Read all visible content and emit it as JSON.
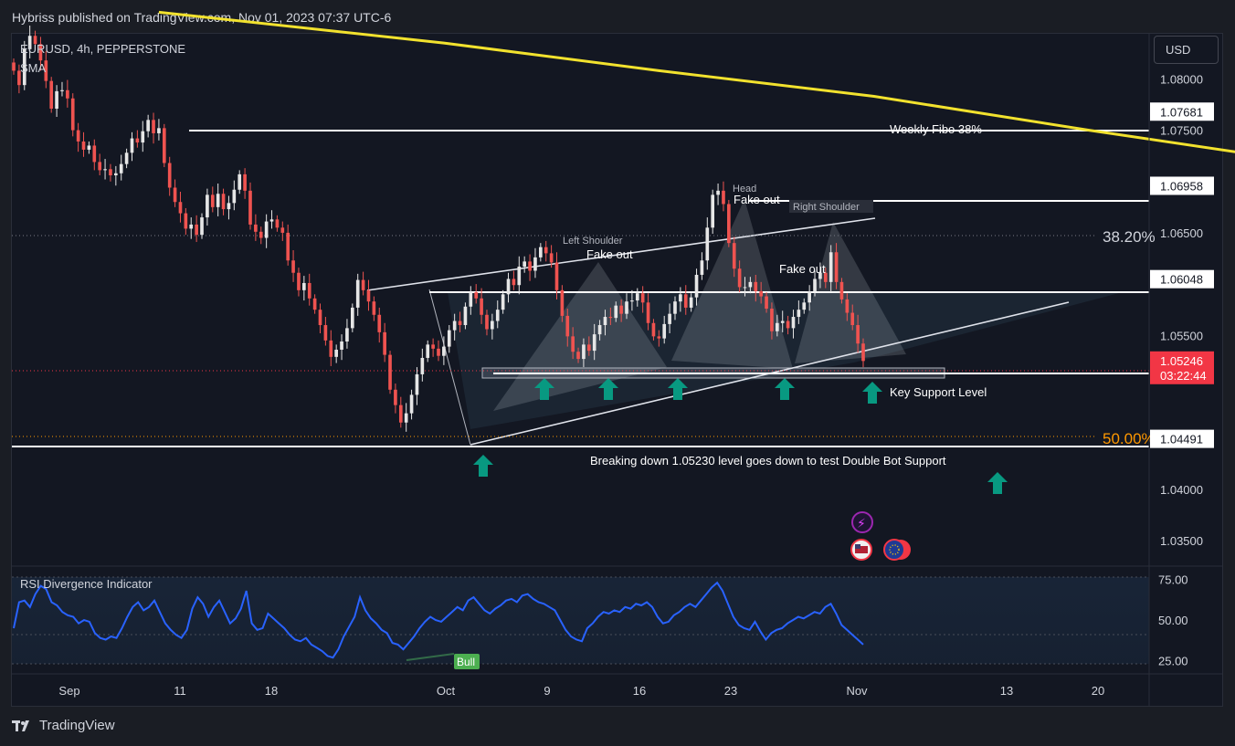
{
  "header": {
    "publisher_line": "Hybriss published on TradingView.com, Nov 01, 2023 07:37 UTC-6"
  },
  "legend": {
    "symbol": "EURUSD, 4h, PEPPERSTONE",
    "indicator": "SMA",
    "rsi_title": "RSI Divergence Indicator"
  },
  "currency_button": "USD",
  "footer": {
    "brand": "TradingView"
  },
  "colors": {
    "up": "#e6e6e6",
    "down": "#ef5350",
    "sma": "#f2e22e",
    "rsi": "#2962ff",
    "arrow": "#089981",
    "fib": "#ff9800",
    "price_label": "#f23645"
  },
  "chart_data": {
    "type": "candlestick",
    "price_axis": {
      "range": [
        1.0325,
        1.0844
      ],
      "ticks": [
        "1.08000",
        "1.07500",
        "1.06500",
        "1.05500",
        "1.04000",
        "1.03500"
      ],
      "levels": [
        {
          "value": 1.07681,
          "label": "1.07681",
          "style": "solid"
        },
        {
          "value": 1.06958,
          "label": "1.06958",
          "style": "solid"
        },
        {
          "value": 1.06048,
          "label": "1.06048",
          "style": "solid"
        },
        {
          "value": 1.05222,
          "label": "1.05222",
          "style": "solid"
        },
        {
          "value": 1.04491,
          "label": "1.04491",
          "style": "solid"
        }
      ],
      "current": {
        "value": 1.05246,
        "label": "1.05246",
        "countdown": "03:22:44"
      }
    },
    "time_axis": {
      "labels": [
        "Sep",
        "11",
        "18",
        "Oct",
        "9",
        "16",
        "23",
        "Nov",
        "13",
        "20"
      ]
    },
    "annotations": {
      "weekly_fibo": "Weekly Fibo  38%",
      "fib_382": "38.20%",
      "fib_50": "50.00%",
      "head": "Head",
      "left_shoulder": "Left Shoulder",
      "right_shoulder": "Right Shoulder",
      "fakeout_head": "Fake out",
      "fakeout_left": "Fake out",
      "fakeout_right": "Fake out",
      "key_support": "Key Support Level",
      "breakdown": "Breaking down 1.05230 level goes down to test Double Bot Support",
      "bull_label": "Bull"
    },
    "closes": [
      1.0808,
      1.0794,
      1.0829,
      1.0842,
      1.0834,
      1.0818,
      1.0798,
      1.0771,
      1.0788,
      1.0789,
      1.0781,
      1.075,
      1.0739,
      1.0731,
      1.0735,
      1.0719,
      1.0711,
      1.0712,
      1.0706,
      1.0708,
      1.0717,
      1.0728,
      1.0742,
      1.0738,
      1.0749,
      1.076,
      1.0747,
      1.0752,
      1.0718,
      1.0694,
      1.068,
      1.0669,
      1.0654,
      1.0658,
      1.0648,
      1.0665,
      1.0687,
      1.0675,
      1.0688,
      1.0673,
      1.0679,
      1.0692,
      1.0707,
      1.0691,
      1.0658,
      1.0651,
      1.0645,
      1.0661,
      1.0663,
      1.0655,
      1.065,
      1.0623,
      1.0611,
      1.0594,
      1.0601,
      1.0586,
      1.0575,
      1.056,
      1.0545,
      1.0529,
      1.0536,
      1.0544,
      1.0557,
      1.0577,
      1.0604,
      1.0594,
      1.0583,
      1.057,
      1.0553,
      1.0531,
      1.0497,
      1.0482,
      1.0465,
      1.0474,
      1.0492,
      1.0512,
      1.0528,
      1.0541,
      1.0537,
      1.053,
      1.0539,
      1.0555,
      1.0564,
      1.056,
      1.0578,
      1.0592,
      1.0586,
      1.057,
      1.0556,
      1.0564,
      1.0575,
      1.059,
      1.0605,
      1.0599,
      1.0617,
      1.0622,
      1.0613,
      1.0626,
      1.0636,
      1.063,
      1.0621,
      1.0594,
      1.0569,
      1.0549,
      1.0534,
      1.0527,
      1.0541,
      1.0535,
      1.0551,
      1.056,
      1.0568,
      1.0567,
      1.0579,
      1.0571,
      1.0583,
      1.0584,
      1.0591,
      1.0582,
      1.0562,
      1.0549,
      1.0547,
      1.0561,
      1.0571,
      1.0583,
      1.059,
      1.0577,
      1.0587,
      1.0609,
      1.0623,
      1.0655,
      1.0687,
      1.0691,
      1.0678,
      1.064,
      1.0615,
      1.0597,
      1.0597,
      1.0602,
      1.0593,
      1.0588,
      1.0576,
      1.0554,
      1.0562,
      1.0564,
      1.0557,
      1.0568,
      1.0575,
      1.0582,
      1.0593,
      1.0605,
      1.0611,
      1.0602,
      1.0631,
      1.0602,
      1.0585,
      1.0572,
      1.056,
      1.0542,
      1.0525
    ],
    "sma": {
      "name": "SMA",
      "points": [
        [
          27,
          1.0865
        ],
        [
          80,
          1.0835
        ],
        [
          120,
          1.0808
        ],
        [
          160,
          1.0783
        ],
        [
          200,
          1.075
        ],
        [
          240,
          1.0719
        ],
        [
          280,
          1.069
        ],
        [
          320,
          1.0668
        ],
        [
          360,
          1.0652
        ],
        [
          400,
          1.064
        ],
        [
          440,
          1.0625
        ],
        [
          490,
          1.0605
        ],
        [
          530,
          1.0586
        ],
        [
          570,
          1.0568
        ],
        [
          605,
          1.0557
        ],
        [
          625,
          1.055
        ]
      ]
    },
    "rsi": {
      "range": [
        17,
        82
      ],
      "ticks": [
        "75.00",
        "50.00",
        "25.00"
      ],
      "values": [
        45,
        61,
        62,
        58,
        66,
        71,
        69,
        61,
        59,
        55,
        53,
        52,
        48,
        50,
        49,
        42,
        39,
        38,
        40,
        39,
        45,
        52,
        58,
        61,
        56,
        58,
        62,
        55,
        48,
        44,
        41,
        39,
        44,
        57,
        64,
        60,
        52,
        58,
        62,
        55,
        48,
        51,
        57,
        68,
        48,
        44,
        45,
        54,
        51,
        48,
        45,
        41,
        38,
        37,
        39,
        35,
        33,
        31,
        28,
        27,
        32,
        40,
        46,
        52,
        64,
        56,
        51,
        48,
        44,
        42,
        36,
        35,
        32,
        36,
        40,
        45,
        49,
        52,
        50,
        49,
        52,
        55,
        58,
        56,
        62,
        64,
        60,
        56,
        54,
        57,
        59,
        62,
        63,
        61,
        65,
        66,
        63,
        61,
        60,
        58,
        56,
        50,
        44,
        40,
        38,
        37,
        45,
        48,
        52,
        55,
        54,
        56,
        55,
        58,
        57,
        60,
        59,
        61,
        58,
        52,
        48,
        49,
        53,
        55,
        58,
        60,
        58,
        62,
        66,
        70,
        73,
        68,
        60,
        52,
        47,
        45,
        44,
        49,
        43,
        38,
        42,
        44,
        45,
        48,
        50,
        52,
        51,
        53,
        55,
        54,
        58,
        60,
        54,
        47,
        44,
        41,
        38,
        35
      ]
    }
  }
}
